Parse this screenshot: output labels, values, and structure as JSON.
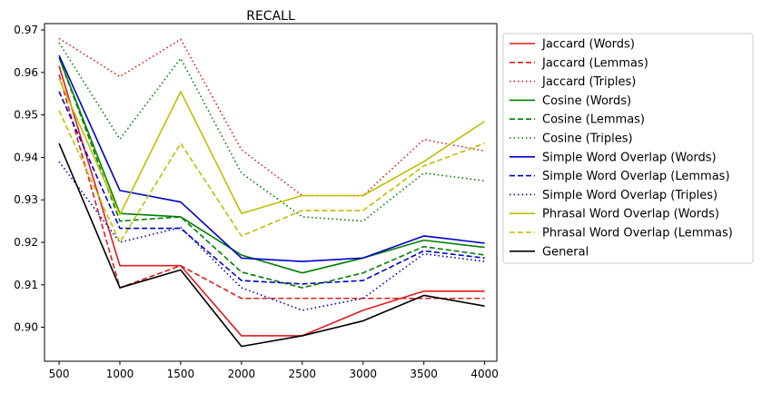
{
  "chart_data": {
    "type": "line",
    "title": "RECALL",
    "xlabel": "",
    "ylabel": "",
    "x": [
      500,
      1000,
      1500,
      2000,
      2500,
      3000,
      3500,
      4000
    ],
    "xticks": [
      500,
      1000,
      1500,
      2000,
      2500,
      3000,
      3500,
      4000
    ],
    "yticks": [
      0.9,
      0.91,
      0.92,
      0.93,
      0.94,
      0.95,
      0.96,
      0.97
    ],
    "ytick_labels": [
      "0.90",
      "0.91",
      "0.92",
      "0.93",
      "0.94",
      "0.95",
      "0.96",
      "0.97"
    ],
    "xlim": [
      380,
      4100
    ],
    "ylim": [
      0.892,
      0.9715
    ],
    "grid": false,
    "legend": "outside-right",
    "series": [
      {
        "name": "Jaccard (Words)",
        "color": "#e41a1c",
        "dash": "solid",
        "values": [
          0.9615,
          0.9145,
          0.9145,
          0.898,
          0.898,
          0.904,
          0.9085,
          0.9085
        ]
      },
      {
        "name": "Jaccard (Lemmas)",
        "color": "#e41a1c",
        "dash": "dashed",
        "values": [
          0.9595,
          0.9093,
          0.9145,
          0.9068,
          0.9068,
          0.9068,
          0.9068,
          0.9068
        ]
      },
      {
        "name": "Jaccard (Triples)",
        "color": "#e41a1c",
        "dash": "dotted",
        "values": [
          0.968,
          0.959,
          0.9678,
          0.9418,
          0.931,
          0.931,
          0.9442,
          0.9415
        ]
      },
      {
        "name": "Cosine (Words)",
        "color": "#008000",
        "dash": "solid",
        "values": [
          0.9635,
          0.9268,
          0.926,
          0.917,
          0.9128,
          0.9163,
          0.9205,
          0.9188
        ]
      },
      {
        "name": "Cosine (Lemmas)",
        "color": "#008000",
        "dash": "dashed",
        "values": [
          0.9635,
          0.925,
          0.926,
          0.913,
          0.9093,
          0.9128,
          0.919,
          0.917
        ]
      },
      {
        "name": "Cosine (Triples)",
        "color": "#008000",
        "dash": "dotted",
        "values": [
          0.967,
          0.9443,
          0.9633,
          0.9363,
          0.926,
          0.925,
          0.9363,
          0.9345
        ]
      },
      {
        "name": "Simple Word Overlap (Words)",
        "color": "#0000cd",
        "dash": "solid",
        "values": [
          0.964,
          0.9322,
          0.9295,
          0.9163,
          0.9155,
          0.9163,
          0.9215,
          0.9198
        ]
      },
      {
        "name": "Simple Word Overlap (Lemmas)",
        "color": "#0000cd",
        "dash": "dashed",
        "values": [
          0.9555,
          0.9233,
          0.9233,
          0.911,
          0.9102,
          0.911,
          0.918,
          0.9163
        ]
      },
      {
        "name": "Simple Word Overlap (Triples)",
        "color": "#0000cd",
        "dash": "dotted",
        "values": [
          0.939,
          0.92,
          0.9235,
          0.9093,
          0.904,
          0.9068,
          0.9173,
          0.9155
        ]
      },
      {
        "name": "Phrasal Word Overlap (Words)",
        "color": "#bfbf00",
        "dash": "solid",
        "values": [
          0.9585,
          0.9265,
          0.9555,
          0.9268,
          0.931,
          0.931,
          0.939,
          0.9485
        ]
      },
      {
        "name": "Phrasal Word Overlap (Lemmas)",
        "color": "#bfbf00",
        "dash": "dashed",
        "values": [
          0.951,
          0.92,
          0.9433,
          0.9215,
          0.9275,
          0.9275,
          0.938,
          0.9433
        ]
      },
      {
        "name": "General",
        "color": "#000000",
        "dash": "solid",
        "values": [
          0.9433,
          0.9093,
          0.9135,
          0.8955,
          0.898,
          0.9015,
          0.9075,
          0.905
        ]
      }
    ]
  }
}
